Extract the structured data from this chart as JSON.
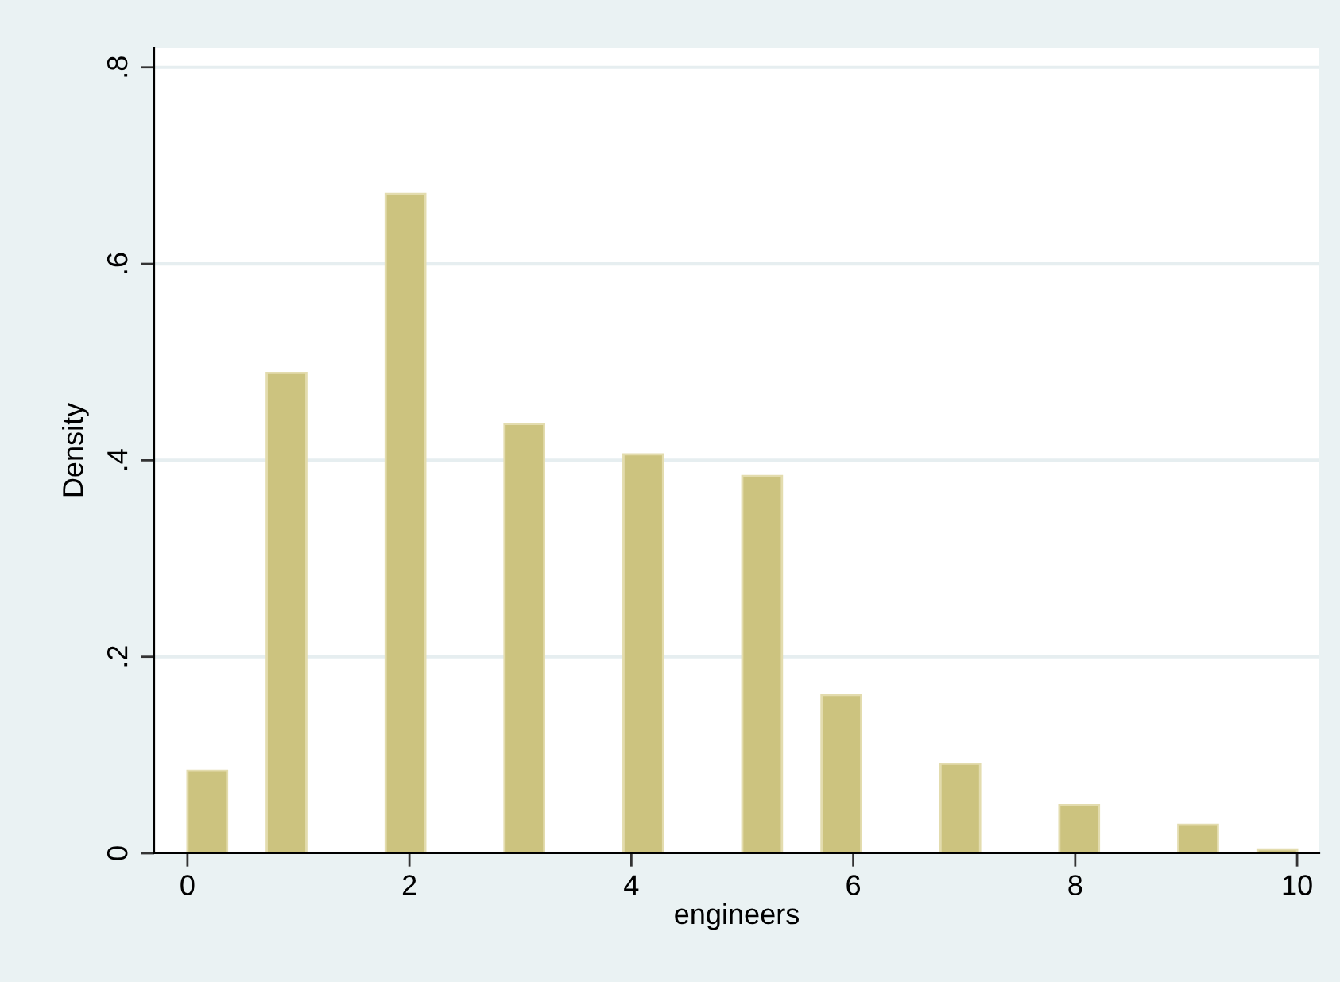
{
  "chart_data": {
    "type": "histogram",
    "xlabel": "engineers",
    "ylabel": "Density",
    "bins": [
      0,
      0.357,
      0.714,
      1.071,
      1.429,
      1.786,
      2.143,
      2.5,
      2.857,
      3.214,
      3.571,
      3.929,
      4.286,
      4.643,
      5,
      5.357,
      5.714,
      6.071,
      6.429,
      6.786,
      7.143,
      7.5,
      7.857,
      8.214,
      8.571,
      8.929,
      9.286,
      9.643,
      10
    ],
    "values": [
      0.084,
      0,
      0.489,
      0,
      0,
      0.671,
      0,
      0,
      0.437,
      0,
      0,
      0.406,
      0,
      0,
      0.384,
      0,
      0.161,
      0,
      0,
      0.091,
      0,
      0,
      0.049,
      0,
      0,
      0.029,
      0,
      0.004
    ],
    "color": "#ccc37f",
    "xlim": [
      -0.3,
      10.2
    ],
    "ylim": [
      0,
      0.82
    ],
    "xticks": [
      0,
      2,
      4,
      6,
      8,
      10
    ],
    "yticks": [
      0,
      {
        "value": 0.2,
        "label": ".2"
      },
      {
        "value": 0.4,
        "label": ".4"
      },
      {
        "value": 0.6,
        "label": ".6"
      },
      {
        "value": 0.8,
        "label": ".8"
      }
    ],
    "grid": "y"
  }
}
